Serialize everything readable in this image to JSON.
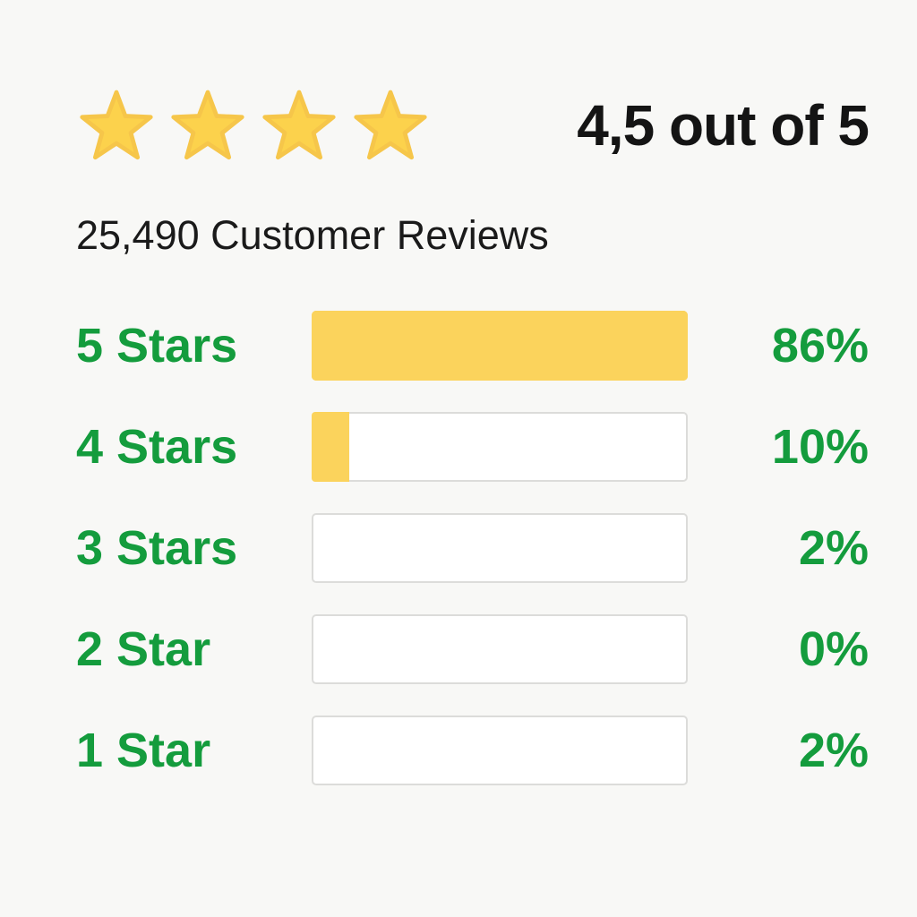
{
  "colors": {
    "background": "#F8F8F6",
    "star_fill": "#FCD24C",
    "star_stroke": "#F6C64A",
    "bar_fill": "#FBD35C",
    "bar_fill_border": "#F2C753",
    "bar_border": "#DCDCDA",
    "bar_background": "#FFFFFF",
    "green": "#149C3D",
    "text_dark": "#141414"
  },
  "header": {
    "rating_text": "4,5 out of 5",
    "stars_shown": 4,
    "stars_total": 5
  },
  "subtitle": "25,490 Customer Reviews",
  "rows": [
    {
      "label": "5 Stars",
      "percent_label": "86%",
      "percent": 86,
      "fill_percent": 100
    },
    {
      "label": "4 Stars",
      "percent_label": "10%",
      "percent": 10,
      "fill_percent": 10
    },
    {
      "label": "3 Stars",
      "percent_label": "2%",
      "percent": 2,
      "fill_percent": 0
    },
    {
      "label": "2 Star",
      "percent_label": "0%",
      "percent": 0,
      "fill_percent": 0
    },
    {
      "label": "1 Star",
      "percent_label": "2%",
      "percent": 2,
      "fill_percent": 0
    }
  ],
  "chart_data": {
    "type": "bar",
    "orientation": "horizontal",
    "title": "25,490 Customer Reviews",
    "rating_summary": "4,5 out of 5",
    "categories": [
      "5 Stars",
      "4 Stars",
      "3 Stars",
      "2 Star",
      "1 Star"
    ],
    "values": [
      86,
      10,
      2,
      0,
      2
    ],
    "value_labels": [
      "86%",
      "10%",
      "2%",
      "0%",
      "2%"
    ],
    "bar_fill_percent": [
      100,
      10,
      0,
      0,
      0
    ],
    "xlim": [
      0,
      100
    ],
    "grid": false,
    "legend": false
  }
}
